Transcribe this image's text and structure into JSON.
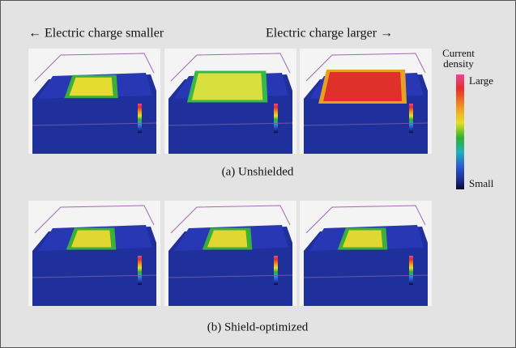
{
  "header": {
    "left": "← Electric charge smaller",
    "right": "Electric charge larger →"
  },
  "legend": {
    "title_line1": "Current",
    "title_line2": "density",
    "large": "Large",
    "small": "Small"
  },
  "captions": {
    "a": "(a) Unshielded",
    "b": "(b) Shield-optimized"
  }
}
